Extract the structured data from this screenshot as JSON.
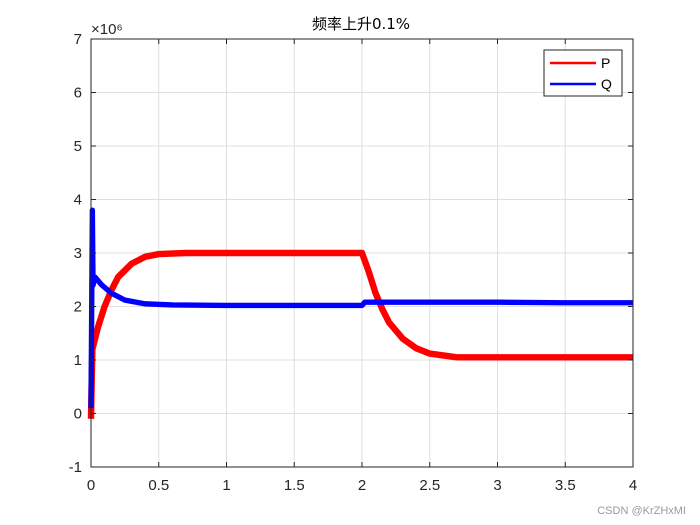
{
  "watermark": "CSDN @KrZHxMI",
  "chart_data": {
    "type": "line",
    "title": "频率上升0.1%",
    "xlabel": "",
    "ylabel": "",
    "y_exponent_label": "×10⁶",
    "y_scale": 1000000,
    "xlim": [
      0,
      4
    ],
    "ylim": [
      -1,
      7
    ],
    "xticks": [
      0,
      0.5,
      1,
      1.5,
      2,
      2.5,
      3,
      3.5,
      4
    ],
    "xtick_labels": [
      "0",
      "0.5",
      "1",
      "1.5",
      "2",
      "2.5",
      "3",
      "3.5",
      "4"
    ],
    "yticks": [
      -1,
      0,
      1,
      2,
      3,
      4,
      5,
      6,
      7
    ],
    "ytick_labels": [
      "-1",
      "0",
      "1",
      "2",
      "3",
      "4",
      "5",
      "6",
      "7"
    ],
    "grid": true,
    "legend_position": "top-right",
    "series": [
      {
        "name": "P",
        "color": "#ff0000",
        "band": 0.12,
        "points": [
          [
            0,
            -0.1
          ],
          [
            0.005,
            0.6
          ],
          [
            0.01,
            1.2
          ],
          [
            0.05,
            1.6
          ],
          [
            0.1,
            2.0
          ],
          [
            0.15,
            2.3
          ],
          [
            0.2,
            2.55
          ],
          [
            0.3,
            2.8
          ],
          [
            0.4,
            2.93
          ],
          [
            0.5,
            2.98
          ],
          [
            0.7,
            3.0
          ],
          [
            1.0,
            3.0
          ],
          [
            1.5,
            3.0
          ],
          [
            2.0,
            3.0
          ],
          [
            2.05,
            2.65
          ],
          [
            2.1,
            2.25
          ],
          [
            2.15,
            1.95
          ],
          [
            2.2,
            1.7
          ],
          [
            2.3,
            1.4
          ],
          [
            2.4,
            1.22
          ],
          [
            2.5,
            1.12
          ],
          [
            2.7,
            1.05
          ],
          [
            3.0,
            1.05
          ],
          [
            3.5,
            1.05
          ],
          [
            4.0,
            1.05
          ]
        ]
      },
      {
        "name": "Q",
        "color": "#0000ff",
        "band": 0.1,
        "points": [
          [
            0,
            0.1
          ],
          [
            0.01,
            3.8
          ],
          [
            0.015,
            2.4
          ],
          [
            0.03,
            2.55
          ],
          [
            0.08,
            2.4
          ],
          [
            0.15,
            2.25
          ],
          [
            0.25,
            2.12
          ],
          [
            0.4,
            2.05
          ],
          [
            0.6,
            2.03
          ],
          [
            1.0,
            2.02
          ],
          [
            1.5,
            2.02
          ],
          [
            2.0,
            2.02
          ],
          [
            2.02,
            2.08
          ],
          [
            2.5,
            2.08
          ],
          [
            3.0,
            2.08
          ],
          [
            3.5,
            2.07
          ],
          [
            4.0,
            2.07
          ]
        ]
      }
    ]
  }
}
